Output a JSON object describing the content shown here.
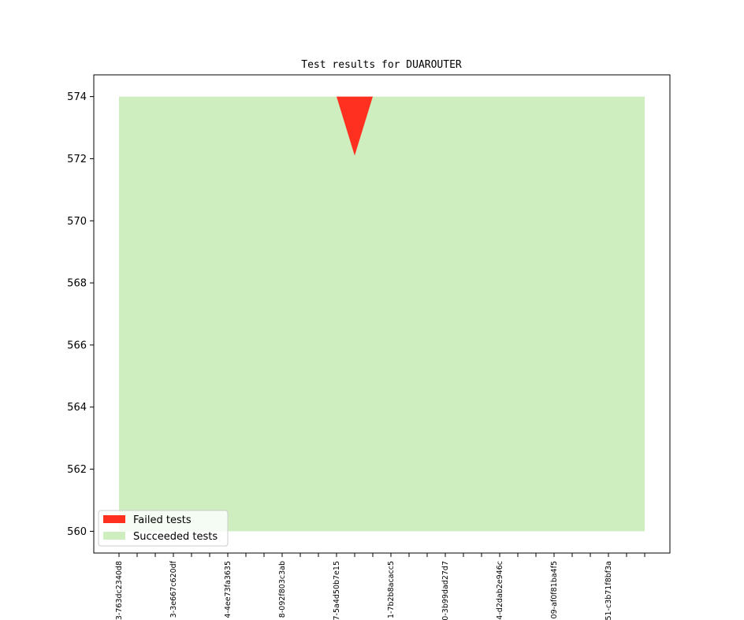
{
  "chart_data": {
    "type": "area",
    "title": "Test results for DUAROUTER",
    "xlabel": "",
    "ylabel": "",
    "ylim": [
      559.3,
      574.7
    ],
    "yticks": [
      560,
      562,
      564,
      566,
      568,
      570,
      572,
      574
    ],
    "x_count": 30,
    "x_tick_labels": [
      {
        "index": 0,
        "label": "3-763dc2340d8"
      },
      {
        "index": 3,
        "label": "3-3e667c620df"
      },
      {
        "index": 6,
        "label": "4-4ee73fa3635"
      },
      {
        "index": 9,
        "label": "8-092f803c3ab"
      },
      {
        "index": 12,
        "label": "7-5a4d50b7e15"
      },
      {
        "index": 15,
        "label": "1-7b2b8acacc5"
      },
      {
        "index": 18,
        "label": "0-3b99dad27d7"
      },
      {
        "index": 21,
        "label": "4-d2dab2e946c"
      },
      {
        "index": 24,
        "label": "09-af0f81ba4f5"
      },
      {
        "index": 27,
        "label": "51-c3b71f8bf3a"
      }
    ],
    "series": [
      {
        "name": "Failed tests",
        "color": "#ff3020",
        "baseline": 574,
        "values": [
          0,
          0,
          0,
          0,
          0,
          0,
          0,
          0,
          0,
          0,
          0,
          0,
          0,
          1.9,
          0,
          0,
          0,
          0,
          0,
          0,
          0,
          0,
          0,
          0,
          0,
          0,
          0,
          0,
          0,
          0
        ]
      },
      {
        "name": "Succeeded tests",
        "color": "#ceeec0",
        "values": [
          574,
          574,
          574,
          574,
          574,
          574,
          574,
          574,
          574,
          574,
          574,
          574,
          574,
          574,
          574,
          574,
          574,
          574,
          574,
          574,
          574,
          574,
          574,
          574,
          574,
          574,
          574,
          574,
          574,
          574
        ]
      }
    ],
    "legend_position": "lower-left",
    "grid": false
  }
}
